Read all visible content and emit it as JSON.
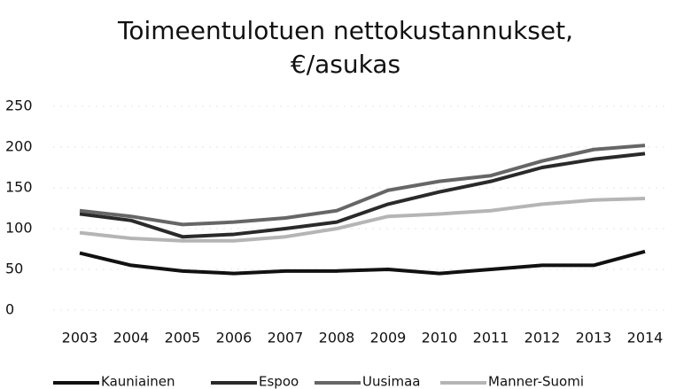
{
  "chart_data": {
    "type": "line",
    "title": [
      "Toimeentulotuen nettokustannukset,",
      "€/asukas"
    ],
    "categories": [
      "2003",
      "2004",
      "2005",
      "2006",
      "2007",
      "2008",
      "2009",
      "2010",
      "2011",
      "2012",
      "2013",
      "2014"
    ],
    "series": [
      {
        "name": "Kauniainen",
        "color": "#111111",
        "values": [
          70,
          55,
          48,
          45,
          48,
          48,
          50,
          45,
          50,
          55,
          55,
          72
        ]
      },
      {
        "name": "Espoo",
        "color": "#2a2a2a",
        "values": [
          118,
          110,
          90,
          93,
          100,
          108,
          130,
          145,
          158,
          175,
          185,
          192
        ]
      },
      {
        "name": "Uusimaa",
        "color": "#666666",
        "values": [
          122,
          115,
          105,
          108,
          113,
          122,
          147,
          158,
          165,
          183,
          197,
          202
        ]
      },
      {
        "name": "Manner-Suomi",
        "color": "#b5b5b5",
        "values": [
          95,
          88,
          85,
          85,
          90,
          100,
          115,
          118,
          122,
          130,
          135,
          137
        ]
      }
    ],
    "ylim": [
      0,
      250
    ],
    "yticks": [
      0,
      50,
      100,
      150,
      200,
      250
    ],
    "grid": true
  }
}
